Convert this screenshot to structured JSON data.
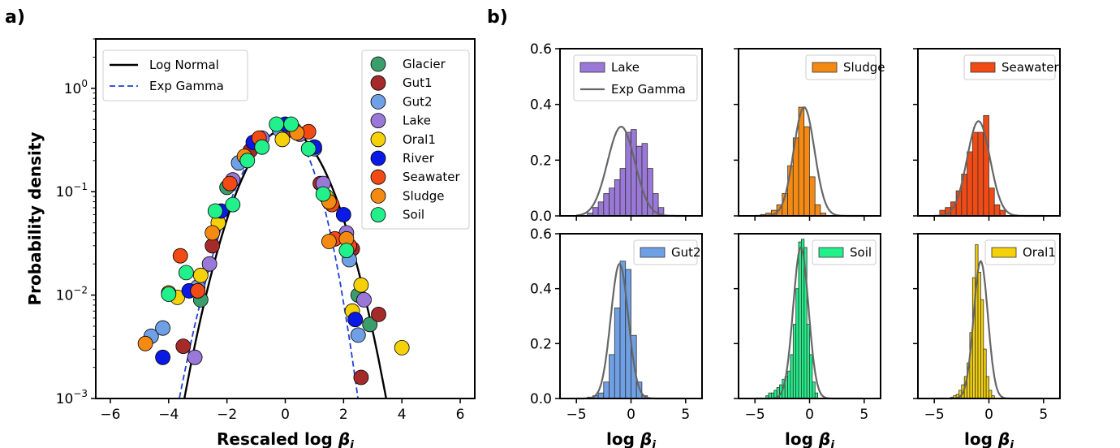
{
  "panel_labels": {
    "a": "a)",
    "b": "b)"
  },
  "chart_data": [
    {
      "type": "scatter",
      "panel": "a",
      "xlabel": "Rescaled log β_i",
      "ylabel": "Probability density",
      "xlim": [
        -6.5,
        6.5
      ],
      "ylim": [
        0.001,
        3
      ],
      "yscale": "log",
      "xticks": [
        -6,
        -4,
        -2,
        0,
        2,
        4,
        6
      ],
      "xtick_labels": [
        "−6",
        "−4",
        "−2",
        "0",
        "2",
        "4",
        "6"
      ],
      "ytick_labels": [
        {
          "base": "10",
          "exp": "0",
          "v": 1
        },
        {
          "base": "10",
          "exp": "−1",
          "v": 0.1
        },
        {
          "base": "10",
          "exp": "−2",
          "v": 0.01
        },
        {
          "base": "10",
          "exp": "−3",
          "v": 0.001
        }
      ],
      "grid": false,
      "curves": [
        {
          "name": "Log Normal",
          "color": "#000000",
          "dash": "solid"
        },
        {
          "name": "Exp Gamma",
          "color": "#1f3fd6",
          "dash": "dashed"
        }
      ],
      "curves_legend_position": "upper-left",
      "series_legend_position": "upper-right",
      "series": [
        {
          "name": "Glacier",
          "color": "#3a9e6c",
          "points": [
            [
              -2.9,
              0.009
            ],
            [
              -2.0,
              0.11
            ],
            [
              -1.0,
              0.28
            ],
            [
              0.3,
              0.4
            ],
            [
              1.5,
              0.08
            ],
            [
              2.5,
              0.01
            ],
            [
              2.9,
              0.0052
            ]
          ]
        },
        {
          "name": "Gut1",
          "color": "#a52a2a",
          "points": [
            [
              -3.5,
              0.0032
            ],
            [
              -2.5,
              0.03
            ],
            [
              -1.2,
              0.25
            ],
            [
              0.0,
              0.38
            ],
            [
              1.2,
              0.12
            ],
            [
              2.3,
              0.028
            ],
            [
              3.2,
              0.0065
            ],
            [
              2.6,
              0.0016
            ]
          ]
        },
        {
          "name": "Gut2",
          "color": "#6fa0e6",
          "points": [
            [
              -4.6,
              0.004
            ],
            [
              -4.2,
              0.0048
            ],
            [
              -3.0,
              0.012
            ],
            [
              -1.6,
              0.19
            ],
            [
              -0.2,
              0.4
            ],
            [
              1.0,
              0.26
            ],
            [
              2.2,
              0.022
            ],
            [
              2.5,
              0.0041
            ]
          ]
        },
        {
          "name": "Lake",
          "color": "#9a78d8",
          "points": [
            [
              -3.1,
              0.0025
            ],
            [
              -2.6,
              0.02
            ],
            [
              -1.8,
              0.13
            ],
            [
              -0.8,
              0.33
            ],
            [
              0.5,
              0.36
            ],
            [
              1.3,
              0.12
            ],
            [
              2.1,
              0.04
            ],
            [
              2.7,
              0.009
            ]
          ]
        },
        {
          "name": "Oral1",
          "color": "#f5d10a",
          "points": [
            [
              -3.7,
              0.0095
            ],
            [
              -2.9,
              0.0155
            ],
            [
              -2.3,
              0.05
            ],
            [
              -0.1,
              0.32
            ],
            [
              1.4,
              0.09
            ],
            [
              2.6,
              0.0125
            ],
            [
              4.0,
              0.0031
            ],
            [
              2.3,
              0.007
            ]
          ]
        },
        {
          "name": "River",
          "color": "#0a1ae6",
          "points": [
            [
              -4.2,
              0.0025
            ],
            [
              -3.3,
              0.011
            ],
            [
              -2.2,
              0.065
            ],
            [
              -1.1,
              0.3
            ],
            [
              0.0,
              0.45
            ],
            [
              1.0,
              0.27
            ],
            [
              2.0,
              0.06
            ],
            [
              2.4,
              0.0058
            ]
          ]
        },
        {
          "name": "Seawater",
          "color": "#f24a14",
          "points": [
            [
              -3.6,
              0.024
            ],
            [
              -3.0,
              0.011
            ],
            [
              -1.9,
              0.12
            ],
            [
              -0.9,
              0.33
            ],
            [
              0.8,
              0.38
            ],
            [
              1.6,
              0.075
            ],
            [
              1.7,
              0.035
            ],
            [
              2.2,
              0.03
            ]
          ]
        },
        {
          "name": "Sludge",
          "color": "#f58a12",
          "points": [
            [
              -4.8,
              0.0034
            ],
            [
              -4.0,
              0.0105
            ],
            [
              -2.5,
              0.04
            ],
            [
              -1.4,
              0.22
            ],
            [
              0.4,
              0.37
            ],
            [
              1.5,
              0.08
            ],
            [
              1.5,
              0.033
            ],
            [
              2.1,
              0.035
            ]
          ]
        },
        {
          "name": "Soil",
          "color": "#22f08a",
          "points": [
            [
              -3.4,
              0.0165
            ],
            [
              -4.0,
              0.0102
            ],
            [
              -2.4,
              0.065
            ],
            [
              -1.8,
              0.075
            ],
            [
              -1.3,
              0.2
            ],
            [
              -0.8,
              0.27
            ],
            [
              -0.3,
              0.45
            ],
            [
              0.2,
              0.45
            ],
            [
              0.8,
              0.26
            ],
            [
              1.3,
              0.095
            ],
            [
              2.1,
              0.027
            ]
          ]
        }
      ]
    },
    {
      "type": "bar",
      "panel": "b",
      "legend": [
        "Lake",
        "Exp Gamma"
      ],
      "color": "#9a78d8",
      "xlim": [
        -6.5,
        6.5
      ],
      "ylim": [
        0,
        0.6
      ],
      "x_ticks": [
        -5,
        0,
        5
      ],
      "y_ticks": [
        0,
        0.2,
        0.4,
        0.6
      ],
      "bin_start": -4.0,
      "bin_width": 0.5,
      "values": [
        0.01,
        0.03,
        0.05,
        0.08,
        0.1,
        0.13,
        0.17,
        0.3,
        0.31,
        0.25,
        0.26,
        0.17,
        0.08,
        0.03
      ],
      "fit": {
        "mean": -0.9,
        "sd": 1.25,
        "peak": 0.32
      }
    },
    {
      "type": "bar",
      "panel": "b",
      "legend": [
        "Sludge"
      ],
      "color": "#f58a12",
      "xlim": [
        -6.5,
        6.5
      ],
      "ylim": [
        0,
        0.6
      ],
      "x_ticks": [
        -5,
        0,
        5
      ],
      "y_ticks": [
        0,
        0.2,
        0.4,
        0.6
      ],
      "bin_start": -4.5,
      "bin_width": 0.5,
      "values": [
        0.005,
        0.01,
        0.02,
        0.04,
        0.08,
        0.18,
        0.28,
        0.39,
        0.32,
        0.14,
        0.04,
        0.01
      ],
      "fit": {
        "mean": -0.5,
        "sd": 0.95,
        "peak": 0.39
      }
    },
    {
      "type": "bar",
      "panel": "b",
      "legend": [
        "Seawater"
      ],
      "color": "#f24a14",
      "xlim": [
        -6.5,
        6.5
      ],
      "ylim": [
        0,
        0.6
      ],
      "x_ticks": [
        -5,
        0,
        5
      ],
      "y_ticks": [
        0,
        0.2,
        0.4,
        0.6
      ],
      "bin_start": -4.5,
      "bin_width": 0.5,
      "values": [
        0.02,
        0.03,
        0.05,
        0.09,
        0.15,
        0.23,
        0.3,
        0.3,
        0.36,
        0.1,
        0.04,
        0.02
      ],
      "fit": {
        "mean": -0.95,
        "sd": 1.05,
        "peak": 0.34
      }
    },
    {
      "type": "bar",
      "panel": "b",
      "legend": [
        "Gut2"
      ],
      "color": "#6fa0e6",
      "xlim": [
        -6.5,
        6.5
      ],
      "ylim": [
        0,
        0.6
      ],
      "x_ticks": [
        -5,
        0,
        5
      ],
      "y_ticks": [
        0,
        0.2,
        0.4,
        0.6
      ],
      "bin_start": -4.0,
      "bin_width": 0.5,
      "values": [
        0.005,
        0.01,
        0.02,
        0.06,
        0.16,
        0.33,
        0.5,
        0.47,
        0.23,
        0.06,
        0.01
      ],
      "fit": {
        "mean": -1.05,
        "sd": 0.8,
        "peak": 0.49
      }
    },
    {
      "type": "bar",
      "panel": "b",
      "legend": [
        "Soil"
      ],
      "color": "#22f08a",
      "xlim": [
        -6.5,
        6.5
      ],
      "ylim": [
        0,
        0.6
      ],
      "x_ticks": [
        -5,
        0,
        5
      ],
      "y_ticks": [
        0,
        0.2,
        0.4,
        0.6
      ],
      "bin_start": -4.0,
      "bin_width": 0.25,
      "values": [
        0.01,
        0.02,
        0.02,
        0.03,
        0.04,
        0.05,
        0.07,
        0.08,
        0.1,
        0.16,
        0.27,
        0.4,
        0.57,
        0.58,
        0.55,
        0.27,
        0.16,
        0.06,
        0.02
      ],
      "fit": {
        "mean": -0.8,
        "sd": 0.7,
        "peak": 0.55
      }
    },
    {
      "type": "bar",
      "panel": "b",
      "legend": [
        "Oral1"
      ],
      "color": "#f5d10a",
      "xlim": [
        -6.5,
        6.5
      ],
      "ylim": [
        0,
        0.6
      ],
      "x_ticks": [
        -5,
        0,
        5
      ],
      "y_ticks": [
        0,
        0.2,
        0.4,
        0.6
      ],
      "bin_start": -3.5,
      "bin_width": 0.25,
      "values": [
        0.005,
        0.01,
        0.015,
        0.03,
        0.05,
        0.08,
        0.13,
        0.24,
        0.44,
        0.56,
        0.46,
        0.36,
        0.18,
        0.08,
        0.03,
        0.01
      ],
      "fit": {
        "mean": -0.75,
        "sd": 0.65,
        "peak": 0.5
      }
    }
  ]
}
